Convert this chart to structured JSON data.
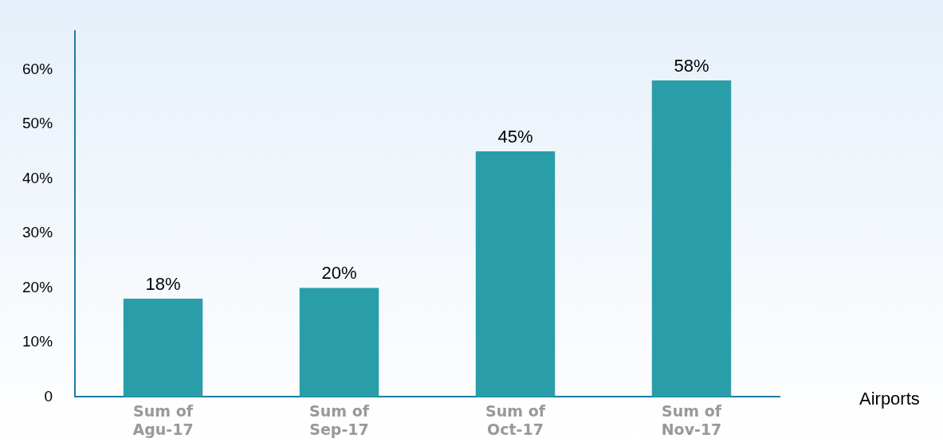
{
  "chart_data": {
    "type": "bar",
    "xlabel": "Airports",
    "categories": [
      "Sum of Agu-17",
      "Sum of Sep-17",
      "Sum of Oct-17",
      "Sum of Nov-17"
    ],
    "values": [
      18,
      20,
      45,
      58
    ],
    "color": "#2a9ea8",
    "value_labels": [
      "18%",
      "20%",
      "45%",
      "58%"
    ],
    "ylim": [
      0,
      67
    ],
    "yticks": [
      {
        "value": 0,
        "label": "0"
      },
      {
        "value": 10,
        "label": "10%"
      },
      {
        "value": 20,
        "label": "20%"
      },
      {
        "value": 30,
        "label": "30%"
      },
      {
        "value": 40,
        "label": "40%"
      },
      {
        "value": 50,
        "label": "50%"
      },
      {
        "value": 60,
        "label": "60%"
      }
    ],
    "grid": false,
    "legend": false
  }
}
